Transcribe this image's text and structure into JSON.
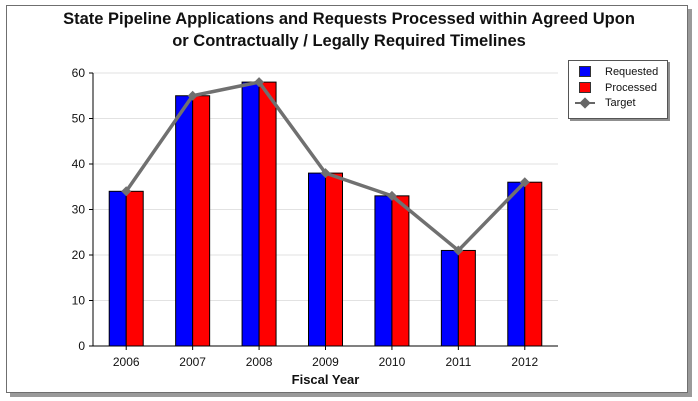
{
  "chart_data": {
    "type": "bar",
    "title_line1": "State Pipeline Applications and Requests Processed within Agreed Upon",
    "title_line2": "or Contractually / Legally Required Timelines",
    "xlabel": "Fiscal Year",
    "ylabel": "",
    "ylim": [
      0,
      60
    ],
    "yticks": [
      0,
      10,
      20,
      30,
      40,
      50,
      60
    ],
    "categories": [
      "2006",
      "2007",
      "2008",
      "2009",
      "2010",
      "2011",
      "2012"
    ],
    "series": [
      {
        "name": "Requested",
        "type": "bar",
        "color": "#0000ff",
        "values": [
          34,
          55,
          58,
          38,
          33,
          21,
          36
        ]
      },
      {
        "name": "Processed",
        "type": "bar",
        "color": "#ff0000",
        "values": [
          34,
          55,
          58,
          38,
          33,
          21,
          36
        ]
      },
      {
        "name": "Target",
        "type": "line",
        "color": "#707070",
        "values": [
          34,
          55,
          58,
          38,
          33,
          21,
          36
        ]
      }
    ],
    "grid": true,
    "legend_position": "top-right"
  }
}
